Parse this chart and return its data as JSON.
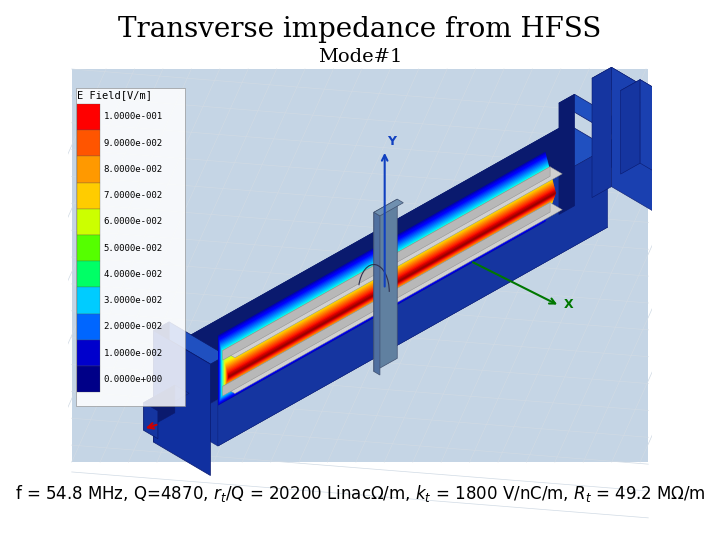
{
  "title": "Transverse impedance from HFSS",
  "subtitle": "Mode#1",
  "caption_parts": [
    "f = 54.8 MHz, Q=4870, r",
    "t",
    "/Q = 20200 LinacΩ/m, k",
    "t",
    " = 1800 V/nC/m, R",
    "t",
    " = 49.2 MΩ/m"
  ],
  "background_color": "#ffffff",
  "sim_bg_color": "#c5d5e5",
  "title_fontsize": 20,
  "subtitle_fontsize": 14,
  "caption_fontsize": 12,
  "colorbar_labels": [
    "1.0000e-001",
    "9.0000e-002",
    "8.0000e-002",
    "7.0000e-002",
    "6.0000e-002",
    "5.0000e-002",
    "4.0000e-002",
    "3.0000e-002",
    "2.0000e-002",
    "1.0000e-002",
    "0.0000e+000"
  ],
  "cb_colors": [
    "#ff0000",
    "#ff5500",
    "#ff9900",
    "#ffcc00",
    "#ccff00",
    "#55ff00",
    "#00ff66",
    "#00ccff",
    "#0066ff",
    "#0000cc",
    "#000088"
  ],
  "colorbar_title": "E Field[V/m]",
  "grid_color": "#d0dae4",
  "body_blue_dark": "#0a1a6e",
  "body_blue_mid": "#1535a0",
  "body_blue_light": "#2050c0",
  "field_colors": [
    "#ff0000",
    "#ff2200",
    "#ff5500",
    "#ff8800",
    "#ffbb00",
    "#ddff00",
    "#88ff00",
    "#00ff88",
    "#00ccff",
    "#0066ff",
    "#0000dd"
  ]
}
